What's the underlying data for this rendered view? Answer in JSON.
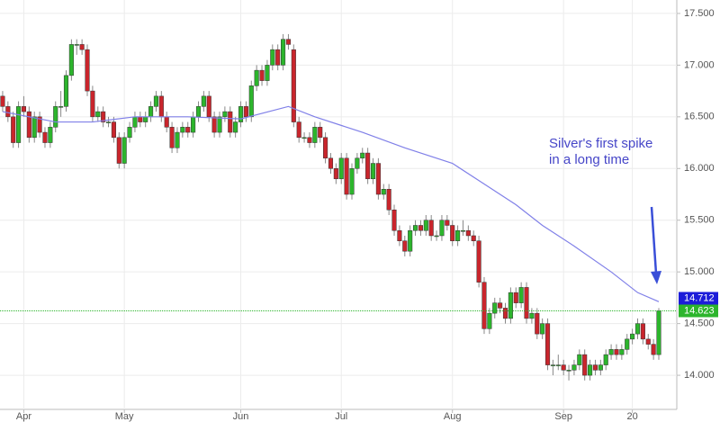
{
  "chart_data": {
    "type": "candlestick",
    "xlim": [
      -0.5,
      127.4
    ],
    "ylim": [
      13.67,
      17.63
    ],
    "xticks": [
      {
        "value": 4,
        "label": "Apr"
      },
      {
        "value": 23,
        "label": "May"
      },
      {
        "value": 45,
        "label": "Jun"
      },
      {
        "value": 64,
        "label": "Jul"
      },
      {
        "value": 85,
        "label": "Aug"
      },
      {
        "value": 106,
        "label": "Sep"
      },
      {
        "value": 119,
        "label": "20"
      }
    ],
    "yticks": [
      {
        "value": 14,
        "label": "14.000"
      },
      {
        "value": 14.5,
        "label": "14.500"
      },
      {
        "value": 15,
        "label": "15.000"
      },
      {
        "value": 15.5,
        "label": "15.500"
      },
      {
        "value": 16,
        "label": "16.000"
      },
      {
        "value": 16.5,
        "label": "16.500"
      },
      {
        "value": 17,
        "label": "17.000"
      },
      {
        "value": 17.5,
        "label": "17.500"
      }
    ],
    "grid": true,
    "up_color": "#2cb52c",
    "down_color": "#c9252c",
    "candles": [
      [
        16.7,
        16.75,
        16.55,
        16.6
      ],
      [
        16.6,
        16.65,
        16.45,
        16.5
      ],
      [
        16.5,
        16.55,
        16.2,
        16.25
      ],
      [
        16.25,
        16.65,
        16.2,
        16.6
      ],
      [
        16.6,
        16.7,
        16.5,
        16.55
      ],
      [
        16.55,
        16.6,
        16.25,
        16.3
      ],
      [
        16.3,
        16.55,
        16.25,
        16.5
      ],
      [
        16.5,
        16.55,
        16.3,
        16.35
      ],
      [
        16.35,
        16.4,
        16.2,
        16.25
      ],
      [
        16.25,
        16.45,
        16.2,
        16.4
      ],
      [
        16.4,
        16.65,
        16.35,
        16.6
      ],
      [
        16.6,
        16.75,
        16.5,
        16.6
      ],
      [
        16.6,
        16.95,
        16.55,
        16.9
      ],
      [
        16.9,
        17.25,
        16.85,
        17.2
      ],
      [
        17.2,
        17.25,
        17.1,
        17.2
      ],
      [
        17.2,
        17.25,
        17.1,
        17.15
      ],
      [
        17.15,
        17.2,
        16.7,
        16.75
      ],
      [
        16.75,
        16.8,
        16.45,
        16.5
      ],
      [
        16.5,
        16.6,
        16.45,
        16.55
      ],
      [
        16.55,
        16.6,
        16.4,
        16.45
      ],
      [
        16.45,
        16.5,
        16.4,
        16.45
      ],
      [
        16.45,
        16.5,
        16.25,
        16.3
      ],
      [
        16.3,
        16.35,
        16.0,
        16.05
      ],
      [
        16.05,
        16.35,
        16.0,
        16.3
      ],
      [
        16.3,
        16.45,
        16.25,
        16.4
      ],
      [
        16.4,
        16.55,
        16.35,
        16.5
      ],
      [
        16.5,
        16.55,
        16.4,
        16.45
      ],
      [
        16.45,
        16.55,
        16.4,
        16.5
      ],
      [
        16.5,
        16.65,
        16.45,
        16.6
      ],
      [
        16.6,
        16.75,
        16.55,
        16.7
      ],
      [
        16.7,
        16.75,
        16.45,
        16.5
      ],
      [
        16.5,
        16.55,
        16.35,
        16.4
      ],
      [
        16.4,
        16.45,
        16.15,
        16.2
      ],
      [
        16.2,
        16.4,
        16.15,
        16.35
      ],
      [
        16.35,
        16.45,
        16.3,
        16.4
      ],
      [
        16.4,
        16.45,
        16.3,
        16.35
      ],
      [
        16.35,
        16.55,
        16.3,
        16.5
      ],
      [
        16.5,
        16.65,
        16.45,
        16.6
      ],
      [
        16.6,
        16.75,
        16.55,
        16.7
      ],
      [
        16.7,
        16.75,
        16.45,
        16.5
      ],
      [
        16.5,
        16.55,
        16.3,
        16.35
      ],
      [
        16.35,
        16.55,
        16.3,
        16.5
      ],
      [
        16.5,
        16.6,
        16.45,
        16.55
      ],
      [
        16.55,
        16.6,
        16.3,
        16.35
      ],
      [
        16.35,
        16.5,
        16.3,
        16.45
      ],
      [
        16.45,
        16.65,
        16.4,
        16.6
      ],
      [
        16.6,
        16.65,
        16.45,
        16.5
      ],
      [
        16.5,
        16.85,
        16.45,
        16.8
      ],
      [
        16.8,
        17.0,
        16.75,
        16.95
      ],
      [
        16.95,
        17.0,
        16.8,
        16.85
      ],
      [
        16.85,
        17.05,
        16.8,
        17.0
      ],
      [
        17.0,
        17.2,
        16.95,
        17.15
      ],
      [
        17.15,
        17.2,
        16.95,
        17.0
      ],
      [
        17.0,
        17.3,
        16.95,
        17.25
      ],
      [
        17.25,
        17.3,
        17.15,
        17.2
      ],
      [
        17.15,
        17.2,
        16.4,
        16.45
      ],
      [
        16.45,
        16.5,
        16.25,
        16.3
      ],
      [
        16.3,
        16.35,
        16.25,
        16.3
      ],
      [
        16.3,
        16.35,
        16.2,
        16.25
      ],
      [
        16.25,
        16.45,
        16.2,
        16.4
      ],
      [
        16.4,
        16.45,
        16.25,
        16.3
      ],
      [
        16.3,
        16.35,
        16.05,
        16.1
      ],
      [
        16.1,
        16.15,
        15.95,
        16.0
      ],
      [
        16.0,
        16.05,
        15.85,
        15.9
      ],
      [
        15.9,
        16.15,
        15.85,
        16.1
      ],
      [
        16.1,
        16.15,
        15.7,
        15.75
      ],
      [
        15.75,
        16.05,
        15.7,
        16.0
      ],
      [
        16.0,
        16.15,
        15.95,
        16.1
      ],
      [
        16.1,
        16.2,
        16.05,
        16.15
      ],
      [
        16.15,
        16.2,
        15.85,
        15.9
      ],
      [
        15.9,
        16.1,
        15.85,
        16.05
      ],
      [
        16.05,
        16.1,
        15.7,
        15.75
      ],
      [
        15.75,
        15.85,
        15.7,
        15.8
      ],
      [
        15.8,
        15.85,
        15.55,
        15.6
      ],
      [
        15.6,
        15.65,
        15.35,
        15.4
      ],
      [
        15.4,
        15.45,
        15.25,
        15.3
      ],
      [
        15.3,
        15.35,
        15.15,
        15.2
      ],
      [
        15.2,
        15.45,
        15.15,
        15.4
      ],
      [
        15.4,
        15.5,
        15.35,
        15.45
      ],
      [
        15.45,
        15.5,
        15.35,
        15.4
      ],
      [
        15.4,
        15.55,
        15.35,
        15.5
      ],
      [
        15.5,
        15.55,
        15.3,
        15.35
      ],
      [
        15.35,
        15.4,
        15.3,
        15.35
      ],
      [
        15.35,
        15.55,
        15.3,
        15.5
      ],
      [
        15.5,
        15.55,
        15.4,
        15.45
      ],
      [
        15.45,
        15.5,
        15.25,
        15.3
      ],
      [
        15.3,
        15.45,
        15.25,
        15.4
      ],
      [
        15.4,
        15.5,
        15.35,
        15.4
      ],
      [
        15.4,
        15.45,
        15.3,
        15.35
      ],
      [
        15.35,
        15.4,
        15.25,
        15.3
      ],
      [
        15.3,
        15.35,
        14.85,
        14.9
      ],
      [
        14.9,
        14.95,
        14.4,
        14.45
      ],
      [
        14.45,
        14.65,
        14.4,
        14.6
      ],
      [
        14.6,
        14.75,
        14.55,
        14.7
      ],
      [
        14.7,
        14.75,
        14.6,
        14.65
      ],
      [
        14.65,
        14.7,
        14.5,
        14.55
      ],
      [
        14.55,
        14.85,
        14.5,
        14.8
      ],
      [
        14.8,
        14.85,
        14.65,
        14.7
      ],
      [
        14.7,
        14.9,
        14.65,
        14.85
      ],
      [
        14.85,
        14.9,
        14.5,
        14.55
      ],
      [
        14.55,
        14.65,
        14.5,
        14.6
      ],
      [
        14.6,
        14.65,
        14.35,
        14.4
      ],
      [
        14.4,
        14.55,
        14.35,
        14.5
      ],
      [
        14.5,
        14.55,
        14.05,
        14.1
      ],
      [
        14.1,
        14.15,
        14.0,
        14.1
      ],
      [
        14.1,
        14.2,
        14.05,
        14.1
      ],
      [
        14.1,
        14.15,
        14.0,
        14.05
      ],
      [
        14.05,
        14.1,
        13.95,
        14.05
      ],
      [
        14.05,
        14.15,
        14.0,
        14.1
      ],
      [
        14.1,
        14.25,
        14.05,
        14.2
      ],
      [
        14.2,
        14.25,
        13.95,
        14.0
      ],
      [
        14.0,
        14.15,
        13.95,
        14.1
      ],
      [
        14.1,
        14.15,
        14.0,
        14.05
      ],
      [
        14.05,
        14.15,
        14.0,
        14.1
      ],
      [
        14.1,
        14.25,
        14.05,
        14.2
      ],
      [
        14.2,
        14.3,
        14.15,
        14.25
      ],
      [
        14.25,
        14.3,
        14.15,
        14.2
      ],
      [
        14.2,
        14.3,
        14.15,
        14.25
      ],
      [
        14.25,
        14.4,
        14.2,
        14.35
      ],
      [
        14.35,
        14.45,
        14.3,
        14.4
      ],
      [
        14.4,
        14.55,
        14.35,
        14.5
      ],
      [
        14.5,
        14.55,
        14.3,
        14.35
      ],
      [
        14.35,
        14.4,
        14.25,
        14.3
      ],
      [
        14.3,
        14.35,
        14.15,
        14.2
      ],
      [
        14.2,
        14.65,
        14.15,
        14.623
      ]
    ],
    "ma": {
      "color": "#8080e8",
      "x": [
        0,
        10,
        17,
        25,
        35,
        45,
        54,
        59,
        68,
        76,
        85,
        91,
        97,
        102,
        108,
        115,
        120,
        124
      ],
      "values": [
        16.55,
        16.45,
        16.45,
        16.5,
        16.5,
        16.48,
        16.6,
        16.5,
        16.35,
        16.2,
        16.05,
        15.85,
        15.65,
        15.45,
        15.25,
        15.0,
        14.8,
        14.712
      ]
    },
    "price_tags": [
      {
        "value": 14.712,
        "color": "#1c1cd9"
      },
      {
        "value": 14.623,
        "color": "#2cb52c"
      }
    ],
    "annotation": [
      "Silver's first spike",
      "in a long time"
    ]
  }
}
